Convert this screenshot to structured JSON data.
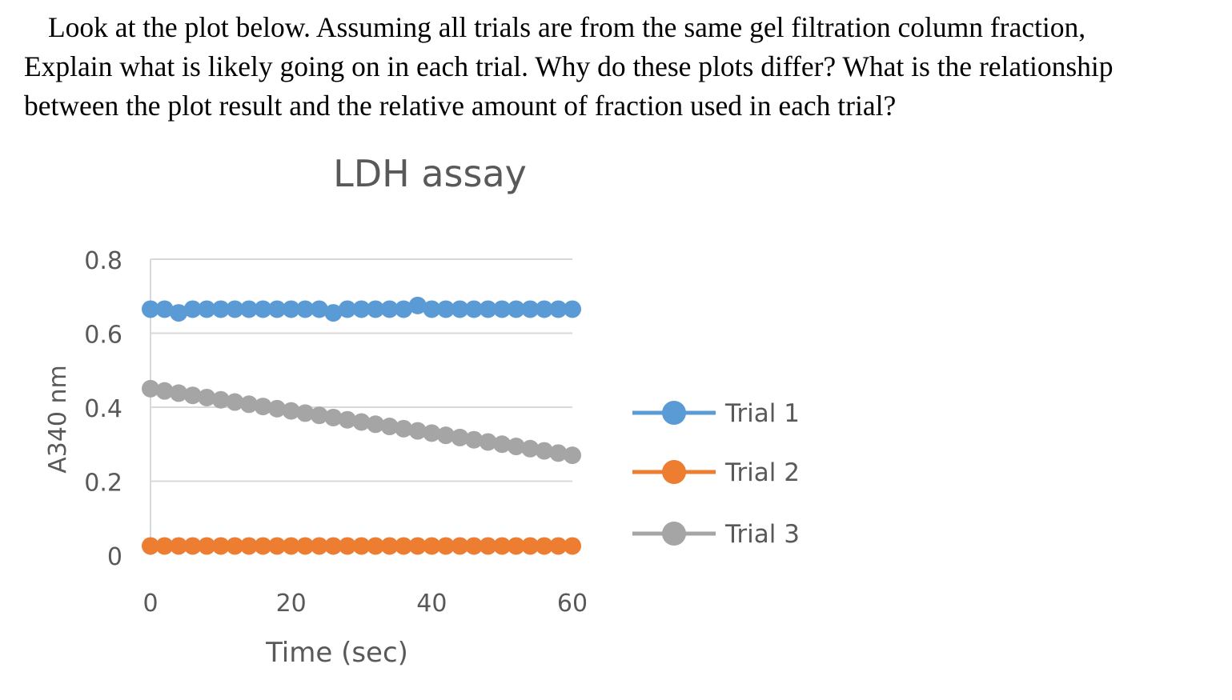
{
  "question": {
    "lines": [
      "Look at the plot below.  Assuming all trials are from the same gel filtration column fraction,",
      "Explain what is likely going on in each trial.  Why do these plots differ? What is the relationship",
      "between the plot result and the relative amount of fraction used in each trial?"
    ]
  },
  "chart_data": {
    "type": "line",
    "title": "LDH assay",
    "xlabel": "Time (sec)",
    "ylabel": "A340 nm",
    "xlim": [
      0,
      60
    ],
    "ylim": [
      0,
      0.8
    ],
    "xticks": [
      0,
      20,
      40,
      60
    ],
    "yticks": [
      0,
      0.2,
      0.4,
      0.6,
      0.8
    ],
    "ytick_labels": [
      "0",
      "0.2",
      "0.4",
      "0.6",
      "0.8"
    ],
    "grid": true,
    "legend_position": "right",
    "x": [
      0,
      2,
      4,
      6,
      8,
      10,
      12,
      14,
      16,
      18,
      20,
      22,
      24,
      26,
      28,
      30,
      32,
      34,
      36,
      38,
      40,
      42,
      44,
      46,
      48,
      50,
      52,
      54,
      56,
      58,
      60
    ],
    "series": [
      {
        "name": "Trial 1",
        "color": "#5B9BD5",
        "values": [
          0.665,
          0.665,
          0.655,
          0.665,
          0.665,
          0.665,
          0.665,
          0.665,
          0.665,
          0.665,
          0.665,
          0.665,
          0.665,
          0.655,
          0.665,
          0.665,
          0.665,
          0.665,
          0.665,
          0.675,
          0.665,
          0.665,
          0.665,
          0.665,
          0.665,
          0.665,
          0.665,
          0.665,
          0.665,
          0.665,
          0.665
        ]
      },
      {
        "name": "Trial 2",
        "color": "#ED7D31",
        "values": [
          0.025,
          0.025,
          0.025,
          0.025,
          0.025,
          0.025,
          0.025,
          0.025,
          0.025,
          0.025,
          0.025,
          0.025,
          0.025,
          0.025,
          0.025,
          0.025,
          0.025,
          0.025,
          0.025,
          0.025,
          0.025,
          0.025,
          0.025,
          0.025,
          0.025,
          0.025,
          0.025,
          0.025,
          0.025,
          0.025,
          0.025
        ]
      },
      {
        "name": "Trial 3",
        "color": "#A5A5A5",
        "values": [
          0.45,
          0.444,
          0.438,
          0.432,
          0.426,
          0.42,
          0.414,
          0.408,
          0.402,
          0.396,
          0.39,
          0.384,
          0.378,
          0.372,
          0.366,
          0.36,
          0.354,
          0.348,
          0.342,
          0.336,
          0.33,
          0.324,
          0.318,
          0.312,
          0.306,
          0.3,
          0.294,
          0.288,
          0.282,
          0.276,
          0.27
        ]
      }
    ]
  },
  "colors": {
    "grid": "#D9D9D9",
    "axis_text": "#595959",
    "title_text": "#595959"
  }
}
